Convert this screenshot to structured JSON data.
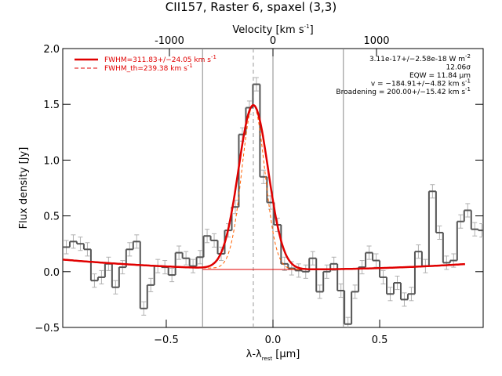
{
  "chart_data": {
    "type": "histogram",
    "title": "CII157, Raster 6, spaxel (3,3)",
    "xlabel": [
      "λ-λ",
      "rest",
      " [μm]"
    ],
    "ylabel": "Flux density [Jy]",
    "x2label": [
      "Velocity [km s",
      "-1",
      "]"
    ],
    "xlim": [
      -0.985,
      0.985
    ],
    "ylim": [
      -0.5,
      2.0
    ],
    "x2lim": [
      -2030,
      2030
    ],
    "xticks": [
      {
        "value": -0.5,
        "label": "−0.5"
      },
      {
        "value": 0,
        "label": "0.0"
      },
      {
        "value": 0.5,
        "label": "0.5"
      }
    ],
    "yticks": [
      {
        "value": -0.5,
        "label": "−0.5"
      },
      {
        "value": 0,
        "label": "0.0"
      },
      {
        "value": 0.5,
        "label": "0.5"
      },
      {
        "value": 1,
        "label": "1.0"
      },
      {
        "value": 1.5,
        "label": "1.5"
      },
      {
        "value": 2,
        "label": "2.0"
      }
    ],
    "x2ticks": [
      -1000,
      0,
      1000
    ],
    "bins": [
      -0.985,
      -0.952,
      -0.919,
      -0.886,
      -0.853,
      -0.82,
      -0.787,
      -0.754,
      -0.721,
      -0.688,
      -0.655,
      -0.622,
      -0.589,
      -0.556,
      -0.523,
      -0.49,
      -0.457,
      -0.424,
      -0.391,
      -0.358,
      -0.325,
      -0.292,
      -0.259,
      -0.226,
      -0.193,
      -0.16,
      -0.127,
      -0.094,
      -0.061,
      -0.028,
      0.005,
      0.038,
      0.071,
      0.104,
      0.137,
      0.17,
      0.203,
      0.236,
      0.269,
      0.302,
      0.335,
      0.368,
      0.401,
      0.434,
      0.467,
      0.5,
      0.533,
      0.566,
      0.599,
      0.632,
      0.665,
      0.698,
      0.731,
      0.764,
      0.797,
      0.83,
      0.863,
      0.896,
      0.929,
      0.962,
      0.995
    ],
    "values": [
      0.22,
      0.27,
      0.25,
      0.2,
      -0.08,
      -0.05,
      0.07,
      -0.14,
      0.04,
      0.2,
      0.27,
      -0.33,
      -0.12,
      0.05,
      0.04,
      -0.03,
      0.17,
      0.12,
      0.05,
      0.13,
      0.32,
      0.28,
      0.16,
      0.37,
      0.58,
      1.23,
      1.47,
      1.68,
      0.85,
      0.62,
      0.42,
      0.07,
      0.03,
      0.01,
      0.0,
      0.12,
      -0.18,
      0.0,
      0.07,
      -0.17,
      -0.47,
      -0.18,
      0.04,
      0.17,
      0.1,
      -0.05,
      -0.2,
      -0.1,
      -0.25,
      -0.2,
      0.18,
      0.05,
      0.72,
      0.35,
      0.08,
      0.1,
      0.45,
      0.55,
      0.38,
      0.37
    ],
    "error": 0.06,
    "color": "#555555",
    "error_color": "#b0b0b0",
    "vlines": [
      -0.33,
      0,
      0.33
    ],
    "line_center": -0.092,
    "continuum": {
      "min_x": 0.1,
      "min": 0.02,
      "curvature": 0.075,
      "end": 0.9
    },
    "fit": {
      "amplitude": 1.47,
      "fwhm": 0.164,
      "fwhm_th": 0.126,
      "color": "#e00000",
      "th_color": "#ff6000"
    },
    "legend": [
      [
        "FWHM=311.83+/−24.05 km s",
        "-1"
      ],
      [
        "FWHM_th=239.38 km s",
        "-1"
      ]
    ],
    "annotations": [
      [
        "3.11e-17+/−2.58e-18 W m",
        "-2"
      ],
      [
        "12.06σ",
        ""
      ],
      [
        "EQW = 11.84 μm",
        ""
      ],
      [
        "v = −184.91+/−4.82 km s",
        "-1"
      ],
      [
        "Broadening = 200.00+/−15.42 km s",
        "-1"
      ]
    ]
  }
}
